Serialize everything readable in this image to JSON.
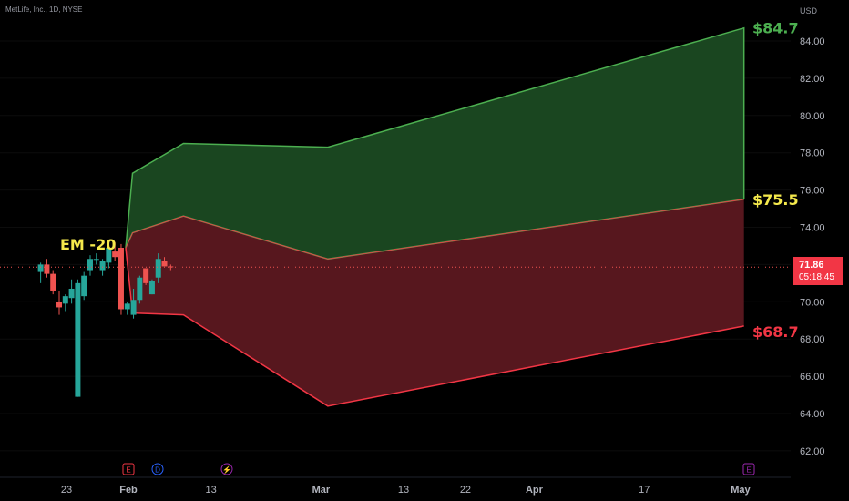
{
  "header": {
    "title": "MetLife, Inc., 1D, NYSE",
    "currency": "USD"
  },
  "price_badge": {
    "price": "71.86",
    "countdown": "05:18:45",
    "color": "#f23645"
  },
  "colors": {
    "up": "#26a69a",
    "down": "#ef5350",
    "upper_band": "#4caf50",
    "lower_band": "#f23645",
    "upper_fill": "#1b4a22",
    "lower_fill": "#5c1820",
    "label_high": "#4caf50",
    "label_mid": "#f5e94c",
    "label_low": "#f23645",
    "em_label": "#f5e94c"
  },
  "chart_data": {
    "type": "candlestick",
    "y_ticks": [
      "62.00",
      "64.00",
      "66.00",
      "68.00",
      "70.00",
      "72.00",
      "74.00",
      "76.00",
      "78.00",
      "80.00",
      "82.00",
      "84.00"
    ],
    "ylim": [
      60.8,
      85.8
    ],
    "x_ticks": [
      {
        "label": "23",
        "bold": false,
        "day": -9
      },
      {
        "label": "Feb",
        "bold": true,
        "day": 0
      },
      {
        "label": "13",
        "bold": false,
        "day": 12
      },
      {
        "label": "Mar",
        "bold": true,
        "day": 28
      },
      {
        "label": "13",
        "bold": false,
        "day": 40
      },
      {
        "label": "22",
        "bold": false,
        "day": 49
      },
      {
        "label": "Apr",
        "bold": true,
        "day": 59
      },
      {
        "label": "17",
        "bold": false,
        "day": 75
      },
      {
        "label": "May",
        "bold": true,
        "day": 89
      }
    ],
    "candles": [
      {
        "o": 71.6,
        "h": 72.1,
        "l": 71.0,
        "c": 72.0
      },
      {
        "o": 72.0,
        "h": 72.3,
        "l": 71.3,
        "c": 71.5
      },
      {
        "o": 71.5,
        "h": 71.7,
        "l": 70.4,
        "c": 70.6
      },
      {
        "o": 70.0,
        "h": 70.6,
        "l": 69.3,
        "c": 69.7
      },
      {
        "o": 69.9,
        "h": 70.4,
        "l": 69.5,
        "c": 70.3
      },
      {
        "o": 70.2,
        "h": 71.2,
        "l": 69.9,
        "c": 70.7
      },
      {
        "o": 64.9,
        "h": 71.2,
        "l": 64.9,
        "c": 71.0
      },
      {
        "o": 70.3,
        "h": 71.6,
        "l": 70.1,
        "c": 71.4
      },
      {
        "o": 71.7,
        "h": 72.5,
        "l": 71.4,
        "c": 72.3
      },
      {
        "o": 72.3,
        "h": 72.6,
        "l": 72.0,
        "c": 72.3
      },
      {
        "o": 71.7,
        "h": 72.3,
        "l": 71.4,
        "c": 72.2
      },
      {
        "o": 72.1,
        "h": 73.0,
        "l": 71.8,
        "c": 72.9
      },
      {
        "o": 72.7,
        "h": 73.2,
        "l": 72.2,
        "c": 72.4
      },
      {
        "o": 72.9,
        "h": 73.1,
        "l": 69.3,
        "c": 69.6
      },
      {
        "o": 69.6,
        "h": 70.0,
        "l": 69.3,
        "c": 69.9
      },
      {
        "o": 69.3,
        "h": 70.7,
        "l": 69.1,
        "c": 70.1
      },
      {
        "o": 70.1,
        "h": 71.4,
        "l": 69.9,
        "c": 71.3
      },
      {
        "o": 71.8,
        "h": 71.8,
        "l": 70.9,
        "c": 71.0
      },
      {
        "o": 70.4,
        "h": 71.2,
        "l": 70.4,
        "c": 71.1
      },
      {
        "o": 71.3,
        "h": 72.6,
        "l": 71.0,
        "c": 72.3
      },
      {
        "o": 72.2,
        "h": 72.4,
        "l": 71.9,
        "c": 71.9
      },
      {
        "o": 71.9,
        "h": 72.0,
        "l": 71.7,
        "c": 71.86
      }
    ],
    "upper_band": [
      [
        -0.4,
        72.9
      ],
      [
        0.6,
        76.9
      ],
      [
        8,
        78.5
      ],
      [
        29,
        78.3
      ],
      [
        89.5,
        84.7
      ],
      [
        89.5,
        75.5
      ]
    ],
    "mid_band": [
      [
        -0.4,
        72.9
      ],
      [
        0.6,
        73.7
      ],
      [
        8,
        74.6
      ],
      [
        29,
        72.3
      ],
      [
        89.5,
        75.5
      ]
    ],
    "lower_band": [
      [
        -0.4,
        72.9
      ],
      [
        0.6,
        69.4
      ],
      [
        8,
        69.3
      ],
      [
        29,
        64.4
      ],
      [
        89.5,
        68.7
      ]
    ],
    "current_price": 71.86,
    "labels": {
      "high": "$84.7",
      "mid": "$75.5",
      "low": "$68.7",
      "em": "EM -20"
    },
    "event_markers": [
      "E",
      "D",
      "⚡",
      "E"
    ]
  }
}
